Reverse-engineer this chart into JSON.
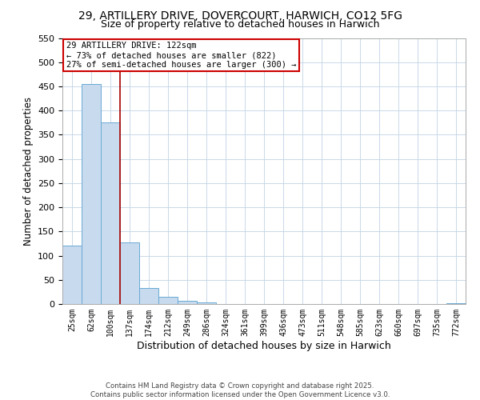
{
  "title": "29, ARTILLERY DRIVE, DOVERCOURT, HARWICH, CO12 5FG",
  "subtitle": "Size of property relative to detached houses in Harwich",
  "xlabel": "Distribution of detached houses by size in Harwich",
  "ylabel": "Number of detached properties",
  "bar_labels": [
    "25sqm",
    "62sqm",
    "100sqm",
    "137sqm",
    "174sqm",
    "212sqm",
    "249sqm",
    "286sqm",
    "324sqm",
    "361sqm",
    "399sqm",
    "436sqm",
    "473sqm",
    "511sqm",
    "548sqm",
    "585sqm",
    "623sqm",
    "660sqm",
    "697sqm",
    "735sqm",
    "772sqm"
  ],
  "bar_values": [
    120,
    455,
    375,
    128,
    33,
    15,
    7,
    3,
    0,
    0,
    0,
    0,
    0,
    0,
    0,
    0,
    0,
    0,
    0,
    0,
    2
  ],
  "bar_color": "#c8daee",
  "bar_edge_color": "#6aaad4",
  "vline_color": "#aa1111",
  "ylim": [
    0,
    550
  ],
  "yticks": [
    0,
    50,
    100,
    150,
    200,
    250,
    300,
    350,
    400,
    450,
    500,
    550
  ],
  "annotation_text": "29 ARTILLERY DRIVE: 122sqm\n← 73% of detached houses are smaller (822)\n27% of semi-detached houses are larger (300) →",
  "annotation_box_color": "#ffffff",
  "annotation_border_color": "#cc0000",
  "footer_line1": "Contains HM Land Registry data © Crown copyright and database right 2025.",
  "footer_line2": "Contains public sector information licensed under the Open Government Licence v3.0.",
  "background_color": "#ffffff",
  "grid_color": "#c8d8e8",
  "title_fontsize": 10,
  "subtitle_fontsize": 9
}
